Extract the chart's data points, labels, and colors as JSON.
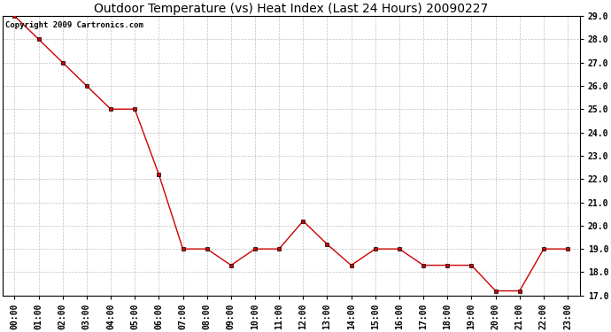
{
  "title": "Outdoor Temperature (vs) Heat Index (Last 24 Hours) 20090227",
  "copyright_text": "Copyright 2009 Cartronics.com",
  "x_labels": [
    "00:00",
    "01:00",
    "02:00",
    "03:00",
    "04:00",
    "05:00",
    "06:00",
    "07:00",
    "08:00",
    "09:00",
    "10:00",
    "11:00",
    "12:00",
    "13:00",
    "14:00",
    "15:00",
    "16:00",
    "17:00",
    "18:00",
    "19:00",
    "20:00",
    "21:00",
    "22:00",
    "23:00"
  ],
  "y_values": [
    29.0,
    28.0,
    27.0,
    26.0,
    25.0,
    25.0,
    22.2,
    19.0,
    19.0,
    18.3,
    19.0,
    19.0,
    20.2,
    19.2,
    18.3,
    19.0,
    19.0,
    18.3,
    18.3,
    18.3,
    17.2,
    17.2,
    19.0,
    19.0
  ],
  "y_min": 17.0,
  "y_max": 29.0,
  "y_ticks": [
    17.0,
    18.0,
    19.0,
    20.0,
    21.0,
    22.0,
    23.0,
    24.0,
    25.0,
    26.0,
    27.0,
    28.0,
    29.0
  ],
  "line_color": "#cc0000",
  "marker": "s",
  "marker_size": 2.5,
  "marker_color": "#000000",
  "background_color": "#ffffff",
  "grid_color": "#c0c0c0",
  "title_fontsize": 10,
  "tick_fontsize": 7,
  "copyright_fontsize": 6.5
}
